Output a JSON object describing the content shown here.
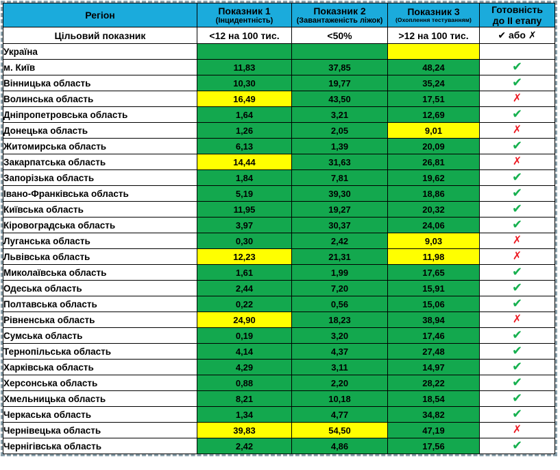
{
  "colors": {
    "header": "#1BABDC",
    "green": "#13A84E",
    "yellow": "#FFFF00",
    "gray": "#BFBFBF",
    "check_green": "#16B04F",
    "cross_red": "#EC1C24"
  },
  "icons": {
    "check": "✔",
    "cross": "✗"
  },
  "table": {
    "columns": [
      {
        "title": "Регіон",
        "subtitle": ""
      },
      {
        "title": "Показник 1",
        "subtitle": "(Інцидентність)"
      },
      {
        "title": "Показник 2",
        "subtitle": "(Завантаженість ліжок)"
      },
      {
        "title": "Показник 3",
        "subtitle": "(Охоплення тестуванням)"
      },
      {
        "title": "Готовність",
        "subtitle": "до II етапу"
      }
    ],
    "target_row": {
      "label": "Цільовий показник",
      "indicator1": "<12 на 100 тис.",
      "indicator2": "<50%",
      "indicator3": ">12 на 100 тис.",
      "readiness": "✔ або ✗"
    },
    "rows": [
      {
        "region": "Україна",
        "values": [
          "",
          "",
          ""
        ],
        "cell_colors": [
          "green",
          "green",
          "yellow"
        ],
        "readiness": "none",
        "readiness_bg": "gray"
      },
      {
        "region": "м. Київ",
        "values": [
          "11,83",
          "37,85",
          "48,24"
        ],
        "cell_colors": [
          "green",
          "green",
          "green"
        ],
        "readiness": "check"
      },
      {
        "region": "Вінницька область",
        "values": [
          "10,30",
          "19,77",
          "35,24"
        ],
        "cell_colors": [
          "green",
          "green",
          "green"
        ],
        "readiness": "check"
      },
      {
        "region": "Волинська область",
        "values": [
          "16,49",
          "43,50",
          "17,51"
        ],
        "cell_colors": [
          "yellow",
          "green",
          "green"
        ],
        "readiness": "cross"
      },
      {
        "region": "Дніпропетровська область",
        "values": [
          "1,64",
          "3,21",
          "12,69"
        ],
        "cell_colors": [
          "green",
          "green",
          "green"
        ],
        "readiness": "check"
      },
      {
        "region": "Донецька область",
        "values": [
          "1,26",
          "2,05",
          "9,01"
        ],
        "cell_colors": [
          "green",
          "green",
          "yellow"
        ],
        "readiness": "cross"
      },
      {
        "region": "Житомирська область",
        "values": [
          "6,13",
          "1,39",
          "20,09"
        ],
        "cell_colors": [
          "green",
          "green",
          "green"
        ],
        "readiness": "check"
      },
      {
        "region": "Закарпатська область",
        "values": [
          "14,44",
          "31,63",
          "26,81"
        ],
        "cell_colors": [
          "yellow",
          "green",
          "green"
        ],
        "readiness": "cross"
      },
      {
        "region": "Запорізька область",
        "values": [
          "1,84",
          "7,81",
          "19,62"
        ],
        "cell_colors": [
          "green",
          "green",
          "green"
        ],
        "readiness": "check"
      },
      {
        "region": "Івано-Франківська область",
        "values": [
          "5,19",
          "39,30",
          "18,86"
        ],
        "cell_colors": [
          "green",
          "green",
          "green"
        ],
        "readiness": "check"
      },
      {
        "region": "Київська область",
        "values": [
          "11,95",
          "19,27",
          "20,32"
        ],
        "cell_colors": [
          "green",
          "green",
          "green"
        ],
        "readiness": "check"
      },
      {
        "region": "Кіровоградська область",
        "values": [
          "3,97",
          "30,37",
          "24,06"
        ],
        "cell_colors": [
          "green",
          "green",
          "green"
        ],
        "readiness": "check"
      },
      {
        "region": "Луганська область",
        "values": [
          "0,30",
          "2,42",
          "9,03"
        ],
        "cell_colors": [
          "green",
          "green",
          "yellow"
        ],
        "readiness": "cross"
      },
      {
        "region": "Львівська область",
        "values": [
          "12,23",
          "21,31",
          "11,98"
        ],
        "cell_colors": [
          "yellow",
          "green",
          "yellow"
        ],
        "readiness": "cross"
      },
      {
        "region": "Миколаївська область",
        "values": [
          "1,61",
          "1,99",
          "17,65"
        ],
        "cell_colors": [
          "green",
          "green",
          "green"
        ],
        "readiness": "check"
      },
      {
        "region": "Одеська область",
        "values": [
          "2,44",
          "7,20",
          "15,91"
        ],
        "cell_colors": [
          "green",
          "green",
          "green"
        ],
        "readiness": "check"
      },
      {
        "region": "Полтавська область",
        "values": [
          "0,22",
          "0,56",
          "15,06"
        ],
        "cell_colors": [
          "green",
          "green",
          "green"
        ],
        "readiness": "check"
      },
      {
        "region": "Рівненська область",
        "values": [
          "24,90",
          "18,23",
          "38,94"
        ],
        "cell_colors": [
          "yellow",
          "green",
          "green"
        ],
        "readiness": "cross"
      },
      {
        "region": "Сумська область",
        "values": [
          "0,19",
          "3,20",
          "17,46"
        ],
        "cell_colors": [
          "green",
          "green",
          "green"
        ],
        "readiness": "check"
      },
      {
        "region": "Тернопільська область",
        "values": [
          "4,14",
          "4,37",
          "27,48"
        ],
        "cell_colors": [
          "green",
          "green",
          "green"
        ],
        "readiness": "check"
      },
      {
        "region": "Харківська область",
        "values": [
          "4,29",
          "3,11",
          "14,97"
        ],
        "cell_colors": [
          "green",
          "green",
          "green"
        ],
        "readiness": "check"
      },
      {
        "region": "Херсонська область",
        "values": [
          "0,88",
          "2,20",
          "28,22"
        ],
        "cell_colors": [
          "green",
          "green",
          "green"
        ],
        "readiness": "check"
      },
      {
        "region": "Хмельницька область",
        "values": [
          "8,21",
          "10,18",
          "18,54"
        ],
        "cell_colors": [
          "green",
          "green",
          "green"
        ],
        "readiness": "check"
      },
      {
        "region": "Черкаська область",
        "values": [
          "1,34",
          "4,77",
          "34,82"
        ],
        "cell_colors": [
          "green",
          "green",
          "green"
        ],
        "readiness": "check"
      },
      {
        "region": "Чернівецька область",
        "values": [
          "39,83",
          "54,50",
          "47,19"
        ],
        "cell_colors": [
          "yellow",
          "yellow",
          "green"
        ],
        "readiness": "cross"
      },
      {
        "region": "Чернігівська область",
        "values": [
          "2,42",
          "4,86",
          "17,56"
        ],
        "cell_colors": [
          "green",
          "green",
          "green"
        ],
        "readiness": "check"
      }
    ]
  }
}
